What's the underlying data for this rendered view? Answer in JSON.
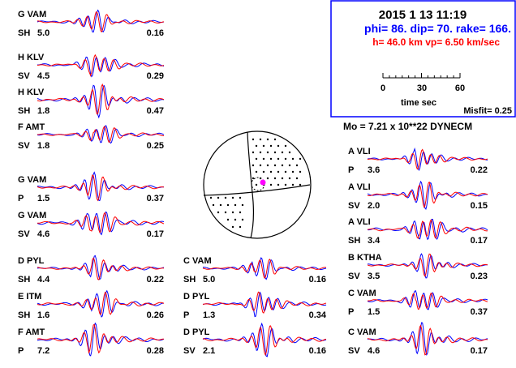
{
  "header": {
    "date_time": "2015  1 13   11:19",
    "mechanism": "phi=  86. dip= 70. rake= 166.",
    "depth_velocity": "h= 46.0 km  vp= 6.50 km/sec",
    "scale_ticks": [
      "0",
      "30",
      "60"
    ],
    "scale_label": "time sec",
    "misfit": "Misfit= 0.25",
    "moment": "Mo =  7.21 x 10**22 DYNECM"
  },
  "colors": {
    "observed": "#ff0000",
    "synthetic": "#0000ff",
    "title_blue": "#0000ff",
    "title_red": "#ff0000",
    "box_border": "#0000ff",
    "p_axis": "#ff00ff"
  },
  "chart_data": [
    {
      "type": "line",
      "station": "G VAM",
      "component": "SH",
      "value": "5.0",
      "amplitude": "0.16",
      "series": [
        {
          "name": "",
          "color": "blue"
        },
        {
          "name": "",
          "color": "red"
        }
      ]
    },
    {
      "type": "line",
      "station": "H KLV",
      "component": "SV",
      "value": "4.5",
      "amplitude": "0.29"
    },
    {
      "type": "line",
      "station": "H KLV",
      "component": "SH",
      "value": "1.8",
      "amplitude": "0.47"
    },
    {
      "type": "line",
      "station": "F AMT",
      "component": "SV",
      "value": "1.8",
      "amplitude": "0.25"
    },
    {
      "type": "line",
      "station": "G VAM",
      "component": "P",
      "value": "1.5",
      "amplitude": "0.37"
    },
    {
      "type": "line",
      "station": "G VAM",
      "component": "SV",
      "value": "4.6",
      "amplitude": "0.17"
    },
    {
      "type": "line",
      "station": "D PYL",
      "component": "SH",
      "value": "4.4",
      "amplitude": "0.22"
    },
    {
      "type": "line",
      "station": "E ITM",
      "component": "SH",
      "value": "1.6",
      "amplitude": "0.26"
    },
    {
      "type": "line",
      "station": "F AMT",
      "component": "P",
      "value": "7.2",
      "amplitude": "0.28"
    },
    {
      "type": "line",
      "station": "C VAM",
      "component": "SH",
      "value": "5.0",
      "amplitude": "0.16"
    },
    {
      "type": "line",
      "station": "D PYL",
      "component": "P",
      "value": "1.3",
      "amplitude": "0.34"
    },
    {
      "type": "line",
      "station": "D PYL",
      "component": "SV",
      "value": "2.1",
      "amplitude": "0.16"
    },
    {
      "type": "line",
      "station": "A VLI",
      "component": "P",
      "value": "3.6",
      "amplitude": "0.22"
    },
    {
      "type": "line",
      "station": "A VLI",
      "component": "SV",
      "value": "2.0",
      "amplitude": "0.15"
    },
    {
      "type": "line",
      "station": "A VLI",
      "component": "SH",
      "value": "3.4",
      "amplitude": "0.17"
    },
    {
      "type": "line",
      "station": "B KTHA",
      "component": "SV",
      "value": "3.5",
      "amplitude": "0.23"
    },
    {
      "type": "line",
      "station": "C VAM",
      "component": "P",
      "value": "1.5",
      "amplitude": "0.37"
    },
    {
      "type": "line",
      "station": "C VAM",
      "component": "SV",
      "value": "4.6",
      "amplitude": "0.17"
    }
  ]
}
